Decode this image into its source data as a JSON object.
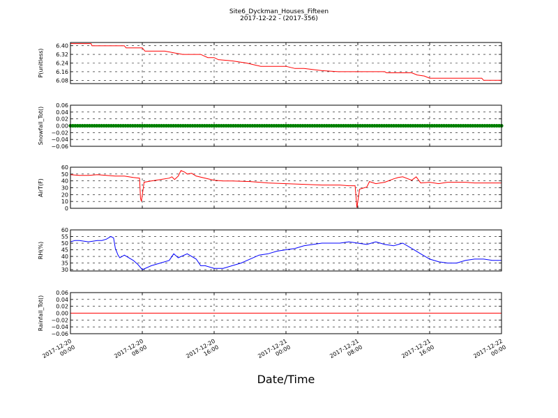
{
  "figure": {
    "title": "Site6_Dyckman_Houses_Fifteen",
    "subtitle": "2017-12-22 - (2017-356)",
    "xlabel": "Date/Time"
  },
  "chart_data": {
    "type": "line",
    "x_tick_labels": [
      [
        "2017-12-20",
        "00:00"
      ],
      [
        "2017-12-20",
        "08:00"
      ],
      [
        "2017-12-20",
        "16:00"
      ],
      [
        "2017-12-21",
        "00:00"
      ],
      [
        "2017-12-21",
        "08:00"
      ],
      [
        "2017-12-21",
        "16:00"
      ],
      [
        "2017-12-22",
        "00:00"
      ]
    ],
    "xlim_hours": [
      0,
      48
    ],
    "grid": true,
    "panels": [
      {
        "ylabel": "P(unitless)",
        "ylim": [
          6.05,
          6.43
        ],
        "yticks": [
          "6.08",
          "6.16",
          "6.24",
          "6.32",
          "6.40"
        ],
        "ytick_values": [
          6.08,
          6.16,
          6.24,
          6.32,
          6.4
        ],
        "color": "#ff0000",
        "marker": false,
        "series": {
          "x": [
            0,
            2.3,
            2.4,
            6,
            6.2,
            8,
            8.3,
            10.5,
            12.5,
            14.5,
            15.3,
            16,
            16.5,
            16.6,
            18,
            19.6,
            21.2,
            24,
            25,
            25.4,
            26,
            28,
            29.8,
            32,
            34,
            35,
            35.2,
            38,
            38.6,
            39.4,
            40,
            42,
            44,
            45.8,
            46,
            48
          ],
          "y": [
            6.42,
            6.42,
            6.4,
            6.4,
            6.38,
            6.38,
            6.35,
            6.35,
            6.32,
            6.32,
            6.29,
            6.29,
            6.27,
            6.27,
            6.26,
            6.24,
            6.21,
            6.21,
            6.19,
            6.19,
            6.19,
            6.17,
            6.16,
            6.16,
            6.16,
            6.16,
            6.15,
            6.15,
            6.13,
            6.12,
            6.1,
            6.1,
            6.1,
            6.1,
            6.08,
            6.08
          ]
        }
      },
      {
        "ylabel": "Snowfall_Tot()",
        "ylim": [
          -0.06,
          0.06
        ],
        "yticks": [
          "0.06",
          "0.04",
          "0.02",
          "0.00",
          "−0.02",
          "−0.04",
          "−0.06"
        ],
        "ytick_values": [
          0.06,
          0.04,
          0.02,
          0.0,
          -0.02,
          -0.04,
          -0.06
        ],
        "color": "#008000",
        "marker": true,
        "series": {
          "x": [
            0,
            48
          ],
          "y": [
            0,
            0
          ]
        }
      },
      {
        "ylabel": "AirT(F)",
        "ylim": [
          0,
          60
        ],
        "yticks": [
          "60",
          "50",
          "40",
          "30",
          "20",
          "10",
          "0"
        ],
        "ytick_values": [
          60,
          50,
          40,
          30,
          20,
          10,
          0
        ],
        "color": "#ff0000",
        "marker": false,
        "series": {
          "x": [
            0,
            1,
            2,
            3,
            4,
            5,
            6,
            7,
            7.7,
            7.8,
            7.9,
            8.2,
            9,
            10,
            11,
            11.3,
            11.6,
            12,
            12.3,
            12.7,
            13,
            13.5,
            14,
            15,
            16,
            17,
            18,
            20,
            22,
            24,
            26,
            28,
            30,
            31,
            31.5,
            31.7,
            31.9,
            32.2,
            33,
            33.3,
            34,
            35,
            36,
            36.5,
            37,
            38,
            38.5,
            39,
            40,
            41,
            42,
            43,
            44,
            45,
            46,
            47,
            48
          ],
          "y": [
            49,
            48,
            48,
            49,
            48,
            47,
            47,
            45,
            44,
            15,
            10,
            38,
            40,
            42,
            44,
            46,
            42,
            47,
            55,
            53,
            50,
            51,
            47,
            44,
            41,
            40,
            40,
            39,
            37,
            36,
            35,
            34,
            34,
            33,
            33,
            33,
            1,
            28,
            31,
            39,
            36,
            38,
            43,
            45,
            46,
            41,
            46,
            37,
            38,
            36,
            38,
            38,
            38,
            37,
            37,
            37,
            37
          ]
        }
      },
      {
        "ylabel": "RH(%)",
        "ylim": [
          29,
          60
        ],
        "yticks": [
          "60",
          "55",
          "50",
          "45",
          "40",
          "35",
          "30"
        ],
        "ytick_values": [
          60,
          55,
          50,
          45,
          40,
          35,
          30
        ],
        "color": "#0000ff",
        "marker": false,
        "series": {
          "x": [
            0,
            0.5,
            1,
            2,
            3,
            3.5,
            4,
            4.5,
            4.8,
            5,
            5.3,
            5.5,
            6,
            7,
            7.5,
            8,
            9,
            10,
            11,
            11.5,
            12,
            13,
            14,
            14.5,
            15,
            16,
            17,
            18,
            19,
            20,
            21,
            22,
            23,
            24,
            25,
            26,
            27,
            28,
            29,
            30,
            31,
            32,
            33,
            34,
            35,
            36,
            36.5,
            37,
            38,
            39,
            40,
            41,
            42,
            43,
            44,
            45,
            46,
            47,
            48
          ],
          "y": [
            51,
            52,
            52,
            51,
            52,
            52,
            53,
            55,
            54,
            46,
            41,
            39,
            41,
            37,
            34,
            30,
            33,
            35,
            37,
            42,
            39,
            42,
            38,
            33,
            33,
            31,
            31,
            33,
            35,
            38,
            41,
            42,
            44,
            45,
            46,
            48,
            49,
            50,
            50,
            50,
            51,
            50,
            49,
            51,
            49,
            48,
            49,
            50,
            46,
            42,
            38,
            36,
            35,
            35,
            37,
            38,
            38,
            37,
            37
          ]
        }
      },
      {
        "ylabel": "Rainfall_Tot()",
        "ylim": [
          -0.06,
          0.06
        ],
        "yticks": [
          "0.06",
          "0.04",
          "0.02",
          "0.00",
          "−0.02",
          "−0.04",
          "−0.06"
        ],
        "ytick_values": [
          0.06,
          0.04,
          0.02,
          0.0,
          -0.02,
          -0.04,
          -0.06
        ],
        "color": "#ff0000",
        "marker": false,
        "series": {
          "x": [
            0,
            48
          ],
          "y": [
            0,
            0
          ]
        }
      }
    ]
  }
}
